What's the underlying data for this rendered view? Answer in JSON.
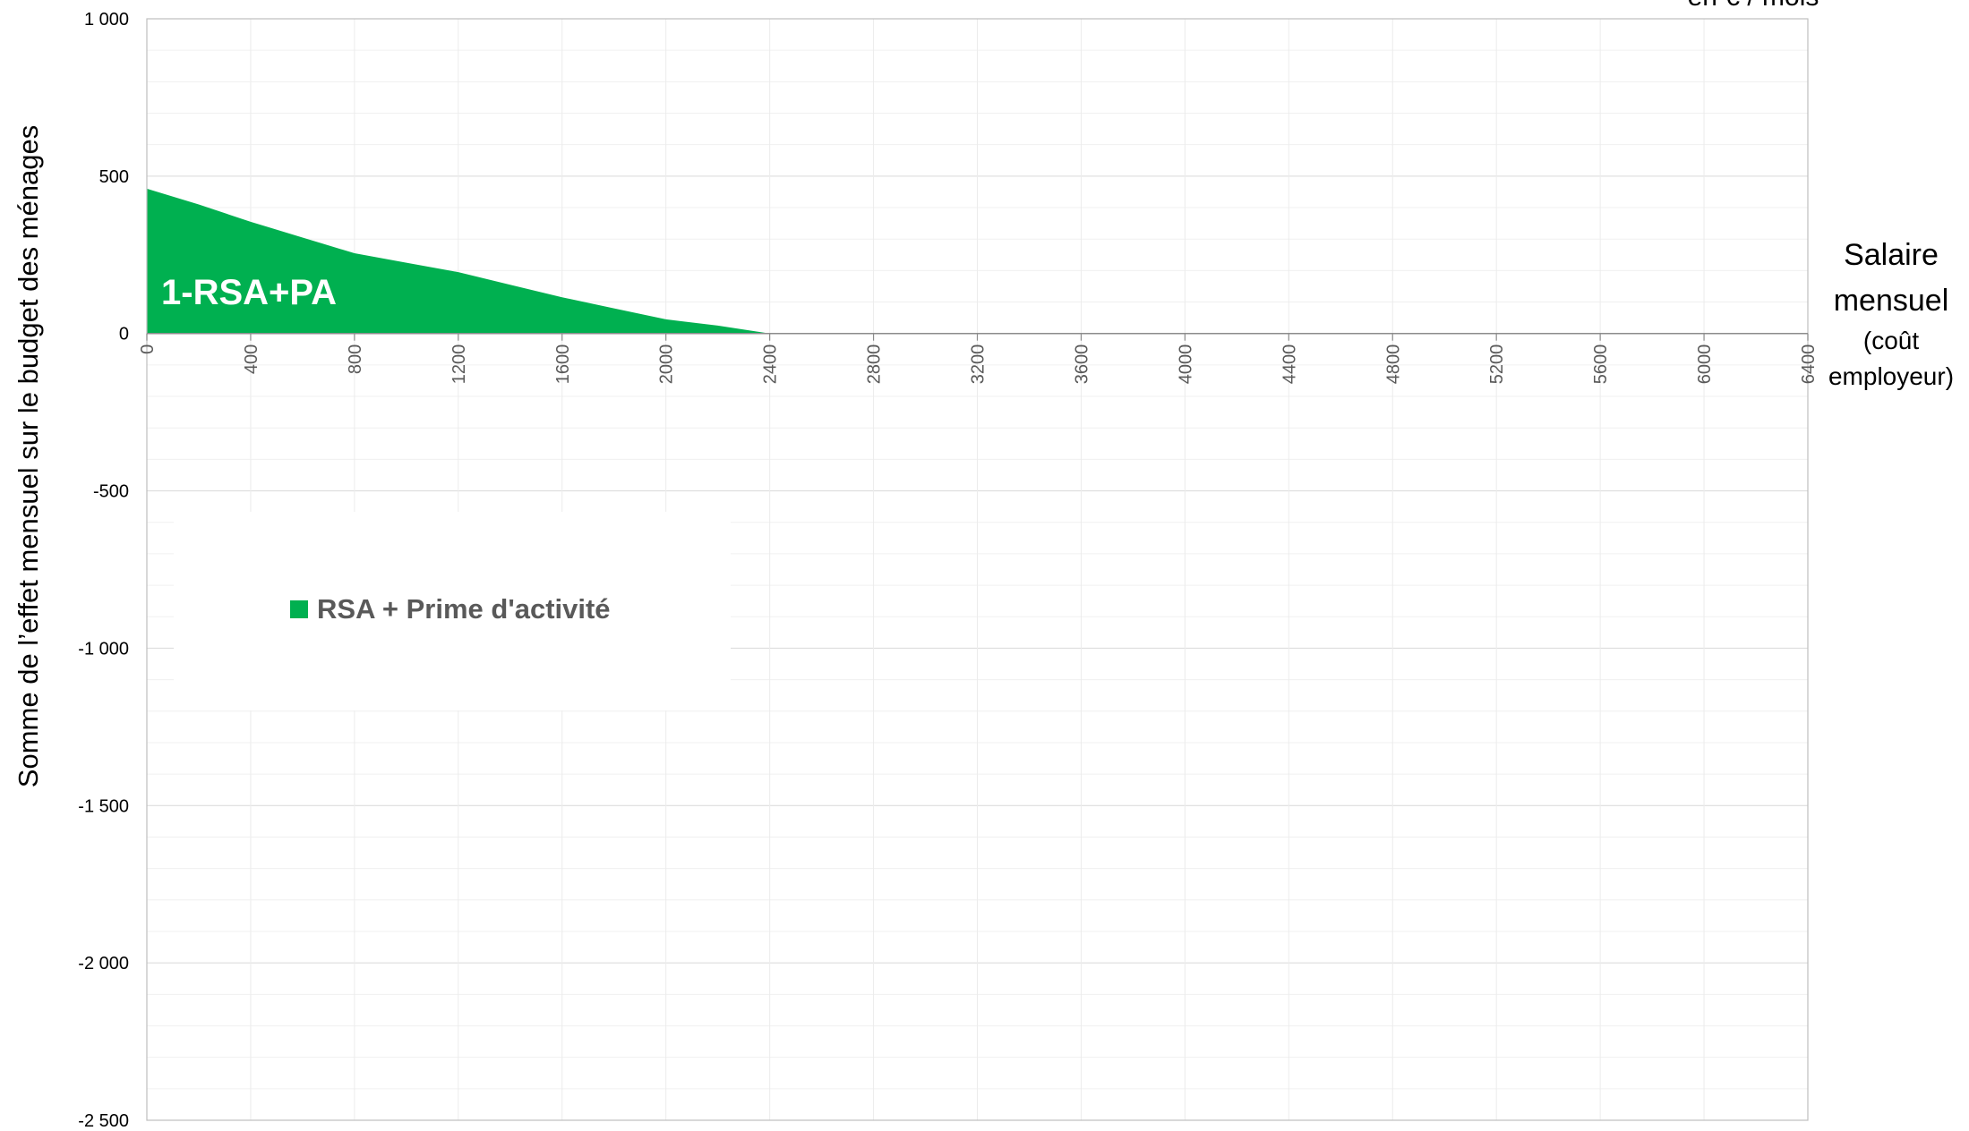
{
  "chart_data": {
    "type": "area",
    "title": "",
    "ylabel": "Somme de l’effet mensuel sur le budget des ménages",
    "xlabel_lines": [
      "Salaire",
      "mensuel"
    ],
    "xlabel_sub_lines": [
      "(coût",
      "employeur)"
    ],
    "unit_label": "en € / mois",
    "ylim": [
      -2500,
      1000
    ],
    "xlim": [
      0,
      6400
    ],
    "y_ticks": [
      1000,
      500,
      0,
      -500,
      -1000,
      -1500,
      -2000,
      -2500
    ],
    "y_tick_labels": [
      "1 000",
      "500",
      "0",
      "-500",
      "-1 000",
      "-1 500",
      "-2 000",
      "-2 500"
    ],
    "x_ticks": [
      0,
      400,
      800,
      1200,
      1600,
      2000,
      2400,
      2800,
      3200,
      3600,
      4000,
      4400,
      4800,
      5200,
      5600,
      6000,
      6400
    ],
    "x_tick_labels": [
      "0",
      "400",
      "800",
      "1200",
      "1600",
      "2000",
      "2400",
      "2800",
      "3200",
      "3600",
      "4000",
      "4400",
      "4800",
      "5200",
      "5600",
      "6000",
      "6400"
    ],
    "grid": true,
    "legend_position": "lower-left",
    "series": [
      {
        "name": "RSA + Prime d'activité",
        "annotation": "1-RSA+PA",
        "color": "#00b050",
        "x": [
          0,
          200,
          400,
          600,
          680,
          800,
          1000,
          1200,
          1400,
          1600,
          1800,
          2000,
          2200,
          2400
        ],
        "y": [
          460,
          410,
          355,
          305,
          285,
          255,
          225,
          195,
          155,
          115,
          80,
          45,
          25,
          0
        ]
      }
    ]
  }
}
